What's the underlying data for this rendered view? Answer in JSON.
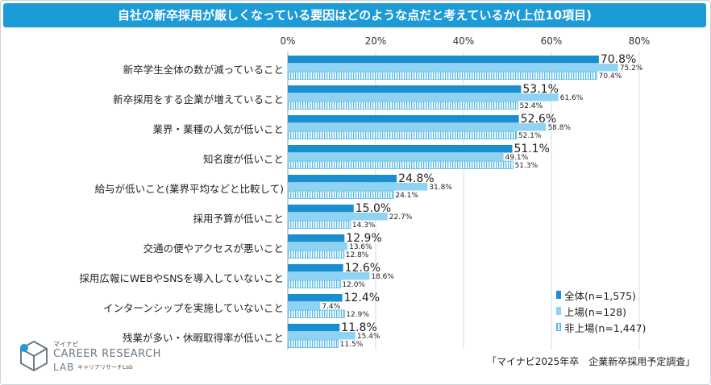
{
  "title": "自社の新卒採用が厳しくなっている要因はどのような点だと考えているか(上位10項目)",
  "source": "「マイナビ2025年卒　企業新卒採用予定調査」",
  "logo": {
    "small": "マイナビ",
    "main": "CAREER RESEARCH",
    "lab": "LAB",
    "jp": "キャリアリサーチLab"
  },
  "colors": {
    "all": "#1a8fd0",
    "listed": "#8fd3f3",
    "unlisted_stripe": "#56b8e6",
    "title_bg": "#1d9bd6"
  },
  "chart_data": {
    "type": "bar",
    "orientation": "horizontal",
    "x_ticks": [
      "0%",
      "20%",
      "40%",
      "60%",
      "80%"
    ],
    "xlim": [
      0,
      80
    ],
    "categories": [
      "新卒学生全体の数が減っていること",
      "新卒採用をする企業が増えていること",
      "業界・業種の人気が低いこと",
      "知名度が低いこと",
      "給与が低いこと(業界平均などと比較して)",
      "採用予算が低いこと",
      "交通の便やアクセスが悪いこと",
      "採用広報にWEBやSNSを導入していないこと",
      "インターンシップを実施していないこと",
      "残業が多い・休暇取得率が低いこと"
    ],
    "series": [
      {
        "name": "全体(n=1,575)",
        "values": [
          70.8,
          53.1,
          52.6,
          51.1,
          24.8,
          15.0,
          12.9,
          12.6,
          12.4,
          11.8
        ],
        "labels": [
          "70.8%",
          "53.1%",
          "52.6%",
          "51.1%",
          "24.8%",
          "15.0%",
          "12.9%",
          "12.6%",
          "12.4%",
          "11.8%"
        ]
      },
      {
        "name": "上場(n=128)",
        "values": [
          75.2,
          61.6,
          58.8,
          49.1,
          31.8,
          22.7,
          13.6,
          18.6,
          7.4,
          15.4
        ],
        "labels": [
          "75.2%",
          "61.6%",
          "58.8%",
          "49.1%",
          "31.8%",
          "22.7%",
          "13.6%",
          "18.6%",
          "7.4%",
          "15.4%"
        ]
      },
      {
        "name": "非上場(n=1,447)",
        "values": [
          70.4,
          52.4,
          52.1,
          51.3,
          24.1,
          14.3,
          12.8,
          12.0,
          12.9,
          11.5
        ],
        "labels": [
          "70.4%",
          "52.4%",
          "52.1%",
          "51.3%",
          "24.1%",
          "14.3%",
          "12.8%",
          "12.0%",
          "12.9%",
          "11.5%"
        ]
      }
    ]
  }
}
